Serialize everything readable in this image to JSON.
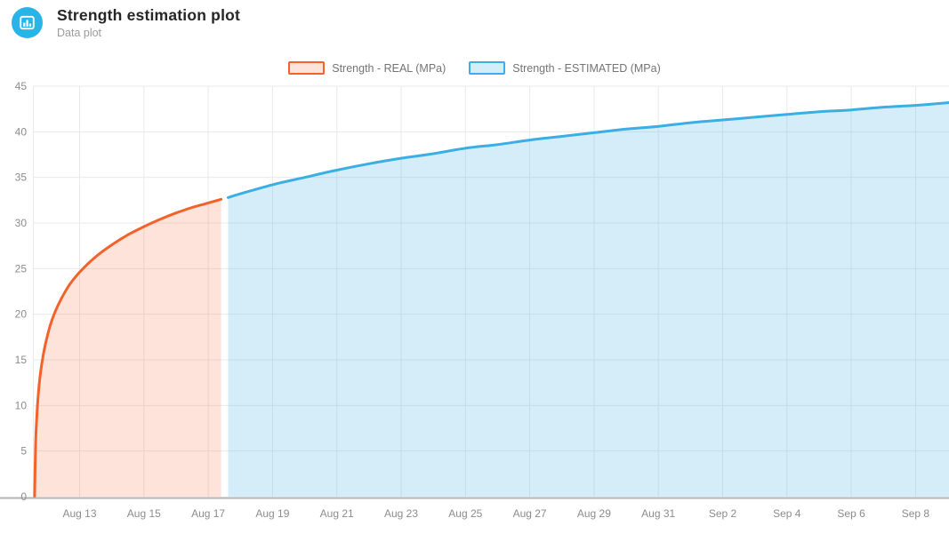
{
  "header": {
    "title": "Strength estimation plot",
    "subtitle": "Data plot",
    "icon": "bar-chart-icon",
    "icon_color": "#29b4e8"
  },
  "chart_data": {
    "type": "area",
    "title": "Strength estimation plot",
    "subtitle": "Data plot",
    "xlabel": "",
    "ylabel": "",
    "grid": true,
    "legend_position": "top-center",
    "x_axis": {
      "tick_labels": [
        "Aug 13",
        "Aug 15",
        "Aug 17",
        "Aug 19",
        "Aug 21",
        "Aug 23",
        "Aug 25",
        "Aug 27",
        "Aug 29",
        "Aug 31",
        "Sep 2",
        "Sep 4",
        "Sep 6",
        "Sep 8"
      ],
      "tick_day_offsets": [
        0,
        2,
        4,
        6,
        8,
        10,
        12,
        14,
        16,
        18,
        20,
        22,
        24,
        26
      ],
      "x_unit": "days relative to Aug 13",
      "visible_day_range": [
        -1.45,
        27.05
      ]
    },
    "y_axis": {
      "ticks": [
        0,
        5,
        10,
        15,
        20,
        25,
        30,
        35,
        40,
        45
      ],
      "range": [
        0,
        45
      ]
    },
    "series": [
      {
        "name": "Strength - REAL (MPa)",
        "color": "#f2622a",
        "fill": "rgba(242,98,42,0.18)",
        "points": [
          [
            -1.4,
            0
          ],
          [
            -1.37,
            5.6
          ],
          [
            -1.34,
            8.2
          ],
          [
            -1.3,
            10.5
          ],
          [
            -1.24,
            12.9
          ],
          [
            -1.17,
            14.7
          ],
          [
            -1.07,
            16.6
          ],
          [
            -0.92,
            18.7
          ],
          [
            -0.77,
            20.2
          ],
          [
            -0.57,
            21.7
          ],
          [
            -0.32,
            23.2
          ],
          [
            0,
            24.6
          ],
          [
            0.5,
            26.3
          ],
          [
            1,
            27.6
          ],
          [
            1.5,
            28.7
          ],
          [
            2,
            29.6
          ],
          [
            2.5,
            30.4
          ],
          [
            3,
            31.1
          ],
          [
            3.5,
            31.7
          ],
          [
            4,
            32.2
          ],
          [
            4.4,
            32.6
          ]
        ]
      },
      {
        "name": "Strength - ESTIMATED (MPa)",
        "color": "#3baee3",
        "fill": "rgba(59,174,227,0.22)",
        "points": [
          [
            4.62,
            32.8
          ],
          [
            5,
            33.2
          ],
          [
            6,
            34.2
          ],
          [
            7,
            35.0
          ],
          [
            8,
            35.8
          ],
          [
            9,
            36.5
          ],
          [
            10,
            37.1
          ],
          [
            11,
            37.6
          ],
          [
            12,
            38.2
          ],
          [
            13,
            38.6
          ],
          [
            14,
            39.1
          ],
          [
            15,
            39.5
          ],
          [
            16,
            39.9
          ],
          [
            17,
            40.3
          ],
          [
            18,
            40.6
          ],
          [
            19,
            41.0
          ],
          [
            20,
            41.3
          ],
          [
            21,
            41.6
          ],
          [
            22,
            41.9
          ],
          [
            23,
            42.2
          ],
          [
            24,
            42.4
          ],
          [
            25,
            42.7
          ],
          [
            26,
            42.9
          ],
          [
            27.05,
            43.2
          ]
        ]
      }
    ],
    "colors": {
      "gridline": "#e9e9e9",
      "axis_line": "#b3b3b3",
      "tick_text": "#8c8c8c"
    }
  }
}
